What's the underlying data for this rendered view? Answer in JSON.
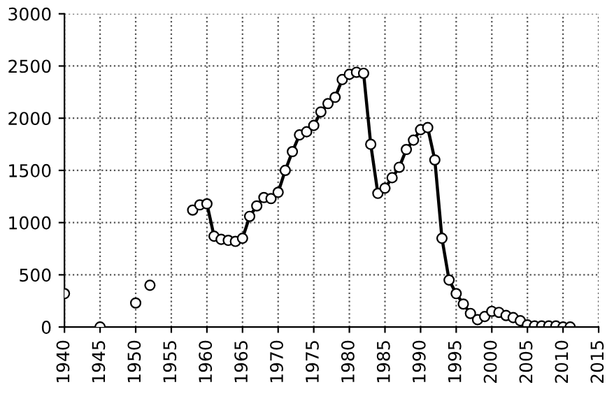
{
  "chart_data": {
    "type": "line",
    "marker": "circle",
    "grid": true,
    "legend": false,
    "xlim": [
      1940,
      2015
    ],
    "xticks": [
      1940,
      1945,
      1950,
      1955,
      1960,
      1965,
      1970,
      1975,
      1980,
      1985,
      1990,
      1995,
      2000,
      2005,
      2010,
      2015
    ],
    "ylim": [
      0,
      3000
    ],
    "yticks": [
      0,
      500,
      1000,
      1500,
      2000,
      2500,
      3000
    ],
    "series": [
      {
        "type": "scatter",
        "color": "#000000",
        "x": [
          1940,
          1945,
          1950,
          1952
        ],
        "values": [
          320,
          0,
          230,
          400
        ]
      },
      {
        "color": "#000000",
        "x": [
          1958,
          1959,
          1960,
          1961,
          1962,
          1963,
          1964,
          1965,
          1966,
          1967,
          1968,
          1969,
          1970,
          1971,
          1972,
          1973,
          1974,
          1975,
          1976,
          1977,
          1978,
          1979,
          1980,
          1981,
          1982,
          1983,
          1984,
          1985,
          1986,
          1987,
          1988,
          1989,
          1990,
          1991,
          1992,
          1993,
          1994,
          1995,
          1996,
          1997,
          1998,
          1999,
          2000,
          2001,
          2002,
          2003,
          2004,
          2005,
          2006,
          2007,
          2008,
          2009,
          2010,
          2011
        ],
        "values": [
          1120,
          1170,
          1180,
          870,
          840,
          830,
          820,
          850,
          1060,
          1160,
          1240,
          1230,
          1290,
          1500,
          1680,
          1840,
          1870,
          1930,
          2060,
          2140,
          2200,
          2370,
          2420,
          2440,
          2430,
          1750,
          1280,
          1330,
          1430,
          1530,
          1700,
          1790,
          1890,
          1910,
          1600,
          850,
          450,
          320,
          220,
          130,
          70,
          100,
          150,
          140,
          110,
          90,
          60,
          20,
          10,
          10,
          10,
          10,
          0,
          0
        ]
      }
    ]
  }
}
